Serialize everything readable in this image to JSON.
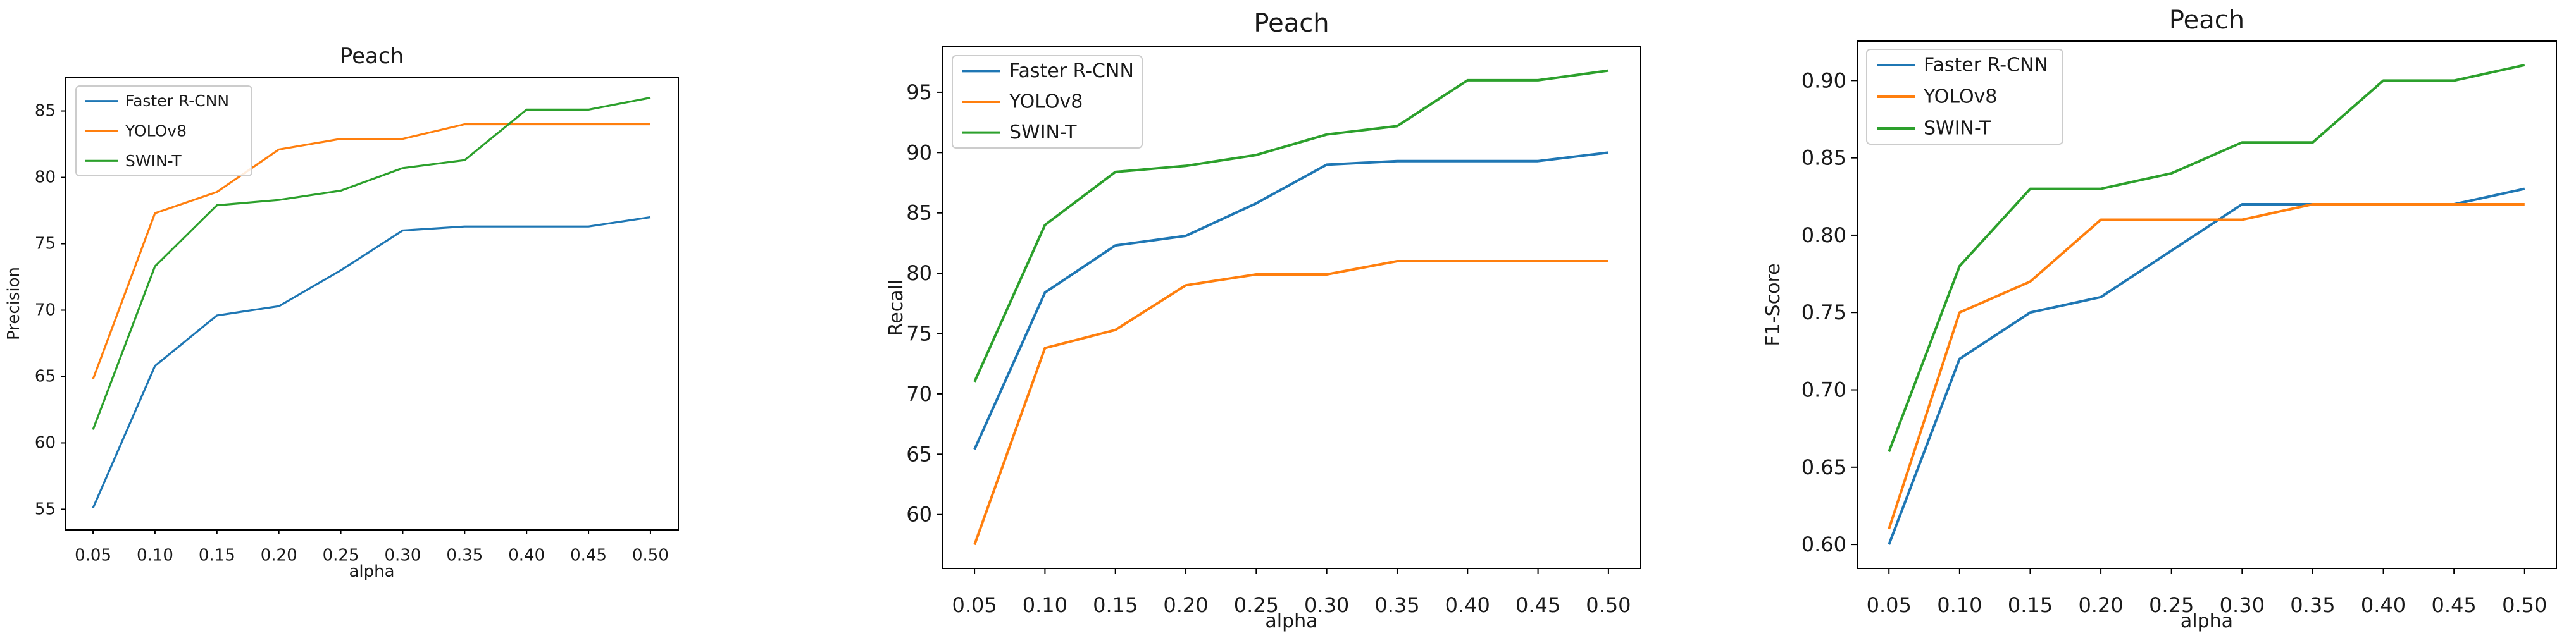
{
  "figure": {
    "background": "#ffffff",
    "axis_color": "#000000",
    "text_color": "#1a1a1a",
    "legend_border_color": "#cccccc"
  },
  "chart_data": [
    {
      "type": "line",
      "title": "Peach",
      "xlabel": "alpha",
      "ylabel": "Precision",
      "grid": false,
      "legend_position": "upper-left",
      "x": [
        0.05,
        0.1,
        0.15,
        0.2,
        0.25,
        0.3,
        0.35,
        0.4,
        0.45,
        0.5
      ],
      "xtick_labels": [
        "0.05",
        "0.10",
        "0.15",
        "0.20",
        "0.25",
        "0.30",
        "0.35",
        "0.40",
        "0.45",
        "0.50"
      ],
      "yticks": [
        55,
        60,
        65,
        70,
        75,
        80,
        85
      ],
      "ytick_labels": [
        "55",
        "60",
        "65",
        "70",
        "75",
        "80",
        "85"
      ],
      "xlim": [
        0.0275,
        0.5225
      ],
      "ylim": [
        53.45,
        87.55
      ],
      "series": [
        {
          "name": "Faster R-CNN",
          "color": "#1f77b4",
          "values": [
            55.1,
            65.8,
            69.6,
            70.3,
            73.0,
            76.0,
            76.3,
            76.3,
            76.3,
            77.0
          ]
        },
        {
          "name": "YOLOv8",
          "color": "#ff7f0e",
          "values": [
            64.8,
            77.3,
            78.9,
            82.1,
            82.9,
            82.9,
            84.0,
            84.0,
            84.0,
            84.0
          ]
        },
        {
          "name": "SWIN-T",
          "color": "#2ca02c",
          "values": [
            61.0,
            73.3,
            77.9,
            78.3,
            79.0,
            80.7,
            81.3,
            85.1,
            85.1,
            86.0
          ]
        }
      ]
    },
    {
      "type": "line",
      "title": "Peach",
      "xlabel": "alpha",
      "ylabel": "Recall",
      "grid": false,
      "legend_position": "upper-left",
      "x": [
        0.05,
        0.1,
        0.15,
        0.2,
        0.25,
        0.3,
        0.35,
        0.4,
        0.45,
        0.5
      ],
      "xtick_labels": [
        "0.05",
        "0.10",
        "0.15",
        "0.20",
        "0.25",
        "0.30",
        "0.35",
        "0.40",
        "0.45",
        "0.50"
      ],
      "yticks": [
        60,
        65,
        70,
        75,
        80,
        85,
        90,
        95
      ],
      "ytick_labels": [
        "60",
        "65",
        "70",
        "75",
        "80",
        "85",
        "90",
        "95"
      ],
      "xlim": [
        0.0275,
        0.5225
      ],
      "ylim": [
        55.53,
        98.77
      ],
      "series": [
        {
          "name": "Faster R-CNN",
          "color": "#1f77b4",
          "values": [
            65.4,
            78.4,
            82.3,
            83.1,
            85.8,
            89.0,
            89.3,
            89.3,
            89.3,
            90.0
          ]
        },
        {
          "name": "YOLOv8",
          "color": "#ff7f0e",
          "values": [
            57.5,
            73.8,
            75.3,
            79.0,
            79.9,
            79.9,
            81.0,
            81.0,
            81.0,
            81.0
          ]
        },
        {
          "name": "SWIN-T",
          "color": "#2ca02c",
          "values": [
            71.0,
            84.0,
            88.4,
            88.9,
            89.8,
            91.5,
            92.2,
            96.0,
            96.0,
            96.8
          ]
        }
      ]
    },
    {
      "type": "line",
      "title": "Peach",
      "xlabel": "alpha",
      "ylabel": "F1-Score",
      "grid": false,
      "legend_position": "upper-left",
      "x": [
        0.05,
        0.1,
        0.15,
        0.2,
        0.25,
        0.3,
        0.35,
        0.4,
        0.45,
        0.5
      ],
      "xtick_labels": [
        "0.05",
        "0.10",
        "0.15",
        "0.20",
        "0.25",
        "0.30",
        "0.35",
        "0.40",
        "0.45",
        "0.50"
      ],
      "yticks": [
        0.6,
        0.65,
        0.7,
        0.75,
        0.8,
        0.85,
        0.9
      ],
      "ytick_labels": [
        "0.60",
        "0.65",
        "0.70",
        "0.75",
        "0.80",
        "0.85",
        "0.90"
      ],
      "xlim": [
        0.0275,
        0.5225
      ],
      "ylim": [
        0.5845,
        0.9255
      ],
      "series": [
        {
          "name": "Faster R-CNN",
          "color": "#1f77b4",
          "values": [
            0.6,
            0.72,
            0.75,
            0.76,
            0.79,
            0.82,
            0.82,
            0.82,
            0.82,
            0.83
          ]
        },
        {
          "name": "YOLOv8",
          "color": "#ff7f0e",
          "values": [
            0.61,
            0.75,
            0.77,
            0.81,
            0.81,
            0.81,
            0.82,
            0.82,
            0.82,
            0.82
          ]
        },
        {
          "name": "SWIN-T",
          "color": "#2ca02c",
          "values": [
            0.66,
            0.78,
            0.83,
            0.83,
            0.84,
            0.86,
            0.86,
            0.9,
            0.9,
            0.91
          ]
        }
      ]
    }
  ]
}
